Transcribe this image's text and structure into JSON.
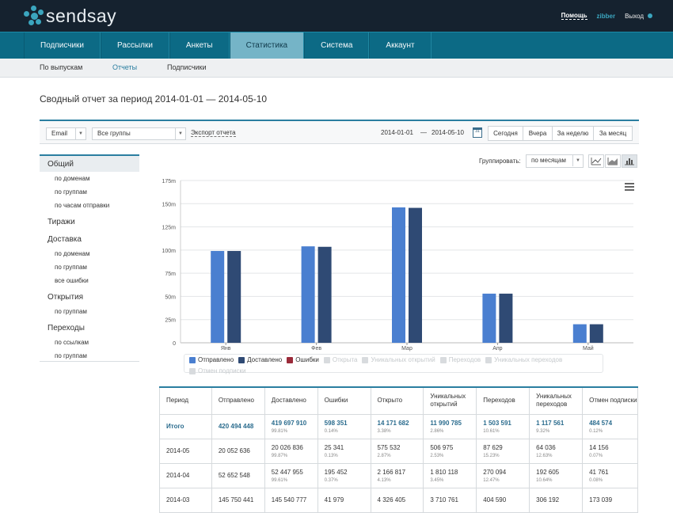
{
  "brand": {
    "name": "sendsay"
  },
  "top_links": {
    "help": "Помощь",
    "user": "zibber",
    "logout": "Выход"
  },
  "main_nav": [
    "Подписчики",
    "Рассылки",
    "Анкеты",
    "Статистика",
    "Система",
    "Аккаунт"
  ],
  "main_nav_active": "Статистика",
  "sub_nav": [
    "По выпускам",
    "Отчеты",
    "Подписчики"
  ],
  "sub_nav_active": "Отчеты",
  "page_title": "Сводный отчет за период 2014-01-01 — 2014-05-10",
  "filters": {
    "channel": "Email",
    "groups": "Все группы",
    "export": "Экспорт отчета",
    "date_from": "2014-01-01",
    "date_sep": "—",
    "date_to": "2014-05-10",
    "calendar_day": "31",
    "quick": [
      "Сегодня",
      "Вчера",
      "За неделю",
      "За месяц"
    ]
  },
  "sidebar": [
    {
      "label": "Общий",
      "level": 0,
      "active": true
    },
    {
      "label": "по доменам",
      "level": 1
    },
    {
      "label": "по группам",
      "level": 1
    },
    {
      "label": "по часам отправки",
      "level": 1
    },
    {
      "label": "Тиражи",
      "level": 0
    },
    {
      "label": "Доставка",
      "level": 0
    },
    {
      "label": "по доменам",
      "level": 1
    },
    {
      "label": "по группам",
      "level": 1
    },
    {
      "label": "все ошибки",
      "level": 1
    },
    {
      "label": "Открытия",
      "level": 0
    },
    {
      "label": "по группам",
      "level": 1
    },
    {
      "label": "Переходы",
      "level": 0
    },
    {
      "label": "по ссылкам",
      "level": 1
    },
    {
      "label": "по группам",
      "level": 1
    }
  ],
  "grouping": {
    "label": "Группировать:",
    "value": "по месяцам"
  },
  "chart_type_buttons": [
    "line-chart-icon",
    "area-chart-icon",
    "bar-chart-icon"
  ],
  "chart_data": {
    "type": "bar",
    "categories": [
      "Янв",
      "Фев",
      "Мар",
      "Апр",
      "Май"
    ],
    "series": [
      {
        "name": "Отправлено",
        "color": "#4a7fd0",
        "values": [
          99.0,
          104.0,
          146.0,
          53.0,
          20.0
        ]
      },
      {
        "name": "Доставлено",
        "color": "#2f4a74",
        "values": [
          99.0,
          103.5,
          145.5,
          53.0,
          20.0
        ]
      }
    ],
    "yticks": [
      "0",
      "25m",
      "50m",
      "75m",
      "100m",
      "125m",
      "150m",
      "175m"
    ],
    "ylim": [
      0,
      175
    ],
    "grid": true
  },
  "legend": [
    {
      "name": "Отправлено",
      "color": "#4a7fd0",
      "on": true
    },
    {
      "name": "Доставлено",
      "color": "#2f4a74",
      "on": true
    },
    {
      "name": "Ошибки",
      "color": "#9b2b3a",
      "on": true
    },
    {
      "name": "Открыта",
      "color": "#d8dbde",
      "on": false
    },
    {
      "name": "Уникальных открытий",
      "color": "#d8dbde",
      "on": false
    },
    {
      "name": "Переходов",
      "color": "#d8dbde",
      "on": false
    },
    {
      "name": "Уникальных переходов",
      "color": "#d8dbde",
      "on": false
    },
    {
      "name": "Отмен подписки",
      "color": "#d8dbde",
      "on": false
    }
  ],
  "table": {
    "headers": [
      "Период",
      "Отправлено",
      "Доставлено",
      "Ошибки",
      "Открыто",
      "Уникальных открытий",
      "Переходов",
      "Уникальных переходов",
      "Отмен подписки"
    ],
    "rows": [
      {
        "period": "Итого",
        "total": true,
        "cells": [
          {
            "v": "420 494 448",
            "p": ""
          },
          {
            "v": "419 697 910",
            "p": "99.81%"
          },
          {
            "v": "598 351",
            "p": "0.14%"
          },
          {
            "v": "14 171 682",
            "p": "3.38%"
          },
          {
            "v": "11 990 785",
            "p": "2.86%"
          },
          {
            "v": "1 503 591",
            "p": "10.61%"
          },
          {
            "v": "1 117 561",
            "p": "9.32%"
          },
          {
            "v": "484 574",
            "p": "0.12%"
          }
        ]
      },
      {
        "period": "2014-05",
        "cells": [
          {
            "v": "20 052 636",
            "p": ""
          },
          {
            "v": "20 026 836",
            "p": "99.87%"
          },
          {
            "v": "25 341",
            "p": "0.13%"
          },
          {
            "v": "575 532",
            "p": "2.87%"
          },
          {
            "v": "506 975",
            "p": "2.53%"
          },
          {
            "v": "87 629",
            "p": "15.23%"
          },
          {
            "v": "64 036",
            "p": "12.63%"
          },
          {
            "v": "14 156",
            "p": "0.07%"
          }
        ]
      },
      {
        "period": "2014-04",
        "cells": [
          {
            "v": "52 652 548",
            "p": ""
          },
          {
            "v": "52 447 955",
            "p": "99.61%"
          },
          {
            "v": "195 452",
            "p": "0.37%"
          },
          {
            "v": "2 166 817",
            "p": "4.13%"
          },
          {
            "v": "1 810 118",
            "p": "3.45%"
          },
          {
            "v": "270 094",
            "p": "12.47%"
          },
          {
            "v": "192 605",
            "p": "10.64%"
          },
          {
            "v": "41 761",
            "p": "0.08%"
          }
        ]
      },
      {
        "period": "2014-03",
        "cells": [
          {
            "v": "145 750 441",
            "p": ""
          },
          {
            "v": "145 540 777",
            "p": ""
          },
          {
            "v": "41 979",
            "p": ""
          },
          {
            "v": "4 326 405",
            "p": ""
          },
          {
            "v": "3 710 761",
            "p": ""
          },
          {
            "v": "404 590",
            "p": ""
          },
          {
            "v": "306 192",
            "p": ""
          },
          {
            "v": "173 039",
            "p": ""
          }
        ]
      }
    ]
  }
}
